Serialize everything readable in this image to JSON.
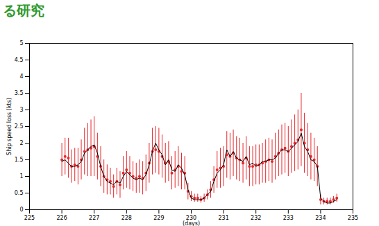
{
  "chart_data": {
    "type": "scatter",
    "title": "る研究",
    "x_label": "(days)",
    "y_label": "Ship speed loss (kts)",
    "xlim": [
      225,
      235
    ],
    "xticks": [
      225,
      226,
      227,
      228,
      229,
      230,
      231,
      232,
      233,
      234,
      235
    ],
    "ylim": [
      0,
      5
    ],
    "yticks": [
      0,
      0.5,
      1,
      1.5,
      2,
      2.5,
      3,
      3.5,
      4,
      4.5,
      5
    ],
    "grid": false,
    "x": [
      226,
      226.1,
      226.2,
      226.3,
      226.4,
      226.5,
      226.6,
      226.7,
      226.8,
      226.9,
      227,
      227.1,
      227.2,
      227.3,
      227.4,
      227.5,
      227.6,
      227.7,
      227.8,
      227.9,
      228,
      228.1,
      228.2,
      228.3,
      228.4,
      228.5,
      228.6,
      228.7,
      228.8,
      228.9,
      229,
      229.1,
      229.2,
      229.3,
      229.4,
      229.5,
      229.6,
      229.7,
      229.8,
      229.9,
      230,
      230.1,
      230.2,
      230.3,
      230.4,
      230.5,
      230.6,
      230.7,
      230.8,
      230.9,
      231,
      231.1,
      231.2,
      231.3,
      231.4,
      231.5,
      231.6,
      231.7,
      231.8,
      231.9,
      232,
      232.1,
      232.2,
      232.3,
      232.4,
      232.5,
      232.6,
      232.7,
      232.8,
      232.9,
      233,
      233.1,
      233.2,
      233.3,
      233.4,
      233.5,
      233.6,
      233.7,
      233.8,
      233.9,
      234,
      234.1,
      234.2,
      234.3,
      234.4,
      234.5
    ],
    "series": [
      {
        "type": "scatter",
        "color": "#e8262a",
        "marker": "dot",
        "values": [
          1.5,
          1.6,
          1.55,
          1.3,
          1.35,
          1.3,
          1.5,
          1.75,
          1.8,
          1.85,
          1.9,
          1.6,
          1.3,
          1.0,
          0.9,
          0.85,
          0.7,
          0.85,
          0.75,
          1.1,
          1.2,
          1.1,
          1.0,
          0.95,
          1.0,
          0.95,
          1.1,
          1.4,
          1.75,
          1.8,
          1.75,
          1.6,
          1.4,
          1.45,
          1.1,
          1.2,
          1.3,
          1.15,
          1.1,
          0.55,
          0.4,
          0.35,
          0.35,
          0.3,
          0.35,
          0.45,
          0.6,
          0.9,
          1.2,
          1.25,
          1.3,
          1.65,
          1.6,
          1.7,
          1.55,
          1.5,
          1.4,
          1.55,
          1.3,
          1.3,
          1.35,
          1.35,
          1.4,
          1.45,
          1.5,
          1.45,
          1.6,
          1.7,
          1.8,
          1.85,
          1.75,
          1.9,
          2.0,
          2.1,
          2.4,
          2.0,
          1.8,
          1.6,
          1.5,
          1.3,
          0.3,
          0.25,
          0.25,
          0.25,
          0.3,
          0.35
        ],
        "error": [
          0.5,
          0.55,
          0.6,
          0.5,
          0.5,
          0.55,
          0.6,
          0.7,
          0.8,
          0.85,
          0.9,
          0.7,
          0.6,
          0.5,
          0.45,
          0.4,
          0.35,
          0.4,
          0.4,
          0.5,
          0.55,
          0.5,
          0.45,
          0.45,
          0.5,
          0.5,
          0.55,
          0.6,
          0.7,
          0.7,
          0.7,
          0.65,
          0.6,
          0.6,
          0.5,
          0.55,
          0.6,
          0.55,
          0.5,
          0.25,
          0.15,
          0.12,
          0.12,
          0.1,
          0.12,
          0.15,
          0.25,
          0.4,
          0.55,
          0.6,
          0.6,
          0.7,
          0.7,
          0.7,
          0.65,
          0.65,
          0.6,
          0.65,
          0.6,
          0.6,
          0.6,
          0.6,
          0.6,
          0.65,
          0.65,
          0.65,
          0.7,
          0.7,
          0.75,
          0.75,
          0.75,
          0.8,
          0.85,
          0.9,
          1.1,
          0.9,
          0.8,
          0.7,
          0.65,
          0.6,
          0.15,
          0.1,
          0.1,
          0.1,
          0.1,
          0.12
        ]
      },
      {
        "type": "line",
        "color": "#000000",
        "line_style": "solid",
        "values": [
          1.45,
          1.5,
          1.4,
          1.3,
          1.3,
          1.35,
          1.45,
          1.7,
          1.8,
          1.9,
          1.95,
          1.7,
          1.3,
          1.0,
          0.85,
          0.8,
          0.75,
          0.85,
          0.8,
          1.0,
          1.15,
          1.05,
          0.95,
          0.9,
          0.95,
          0.9,
          1.05,
          1.35,
          1.75,
          2.0,
          1.8,
          1.65,
          1.35,
          1.5,
          1.2,
          1.15,
          1.35,
          1.25,
          1.05,
          0.6,
          0.35,
          0.3,
          0.3,
          0.3,
          0.35,
          0.45,
          0.55,
          0.85,
          1.1,
          1.2,
          1.35,
          1.8,
          1.6,
          1.75,
          1.55,
          1.5,
          1.45,
          1.6,
          1.35,
          1.4,
          1.3,
          1.35,
          1.45,
          1.45,
          1.5,
          1.5,
          1.55,
          1.7,
          1.8,
          1.8,
          1.75,
          1.85,
          1.95,
          2.05,
          2.3,
          1.9,
          1.75,
          1.5,
          1.45,
          1.3,
          0.35,
          0.25,
          0.2,
          0.2,
          0.25,
          0.3
        ]
      }
    ]
  }
}
